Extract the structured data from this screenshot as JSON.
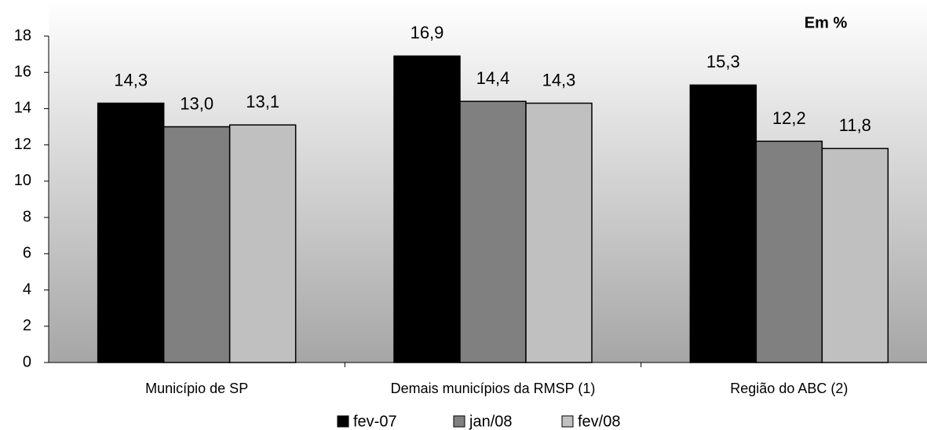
{
  "chart_data": {
    "type": "bar",
    "annotation": "Em %",
    "categories": [
      "Município de SP",
      "Demais municípios da RMSP (1)",
      "Região do ABC (2)"
    ],
    "series": [
      {
        "name": "fev-07",
        "color": "#000000",
        "values": [
          14.3,
          16.9,
          15.3
        ],
        "value_labels": [
          "14,3",
          "16,9",
          "15,3"
        ]
      },
      {
        "name": "jan/08",
        "color": "#808080",
        "values": [
          13.0,
          14.4,
          12.2
        ],
        "value_labels": [
          "13,0",
          "14,4",
          "12,2"
        ]
      },
      {
        "name": "fev/08",
        "color": "#c0c0c0",
        "values": [
          13.1,
          14.3,
          11.8
        ],
        "value_labels": [
          "13,1",
          "14,3",
          "11,8"
        ]
      }
    ],
    "ylim": [
      0,
      18
    ],
    "yticks": [
      0,
      2,
      4,
      6,
      8,
      10,
      12,
      14,
      16,
      18
    ],
    "legend": "bottom"
  }
}
